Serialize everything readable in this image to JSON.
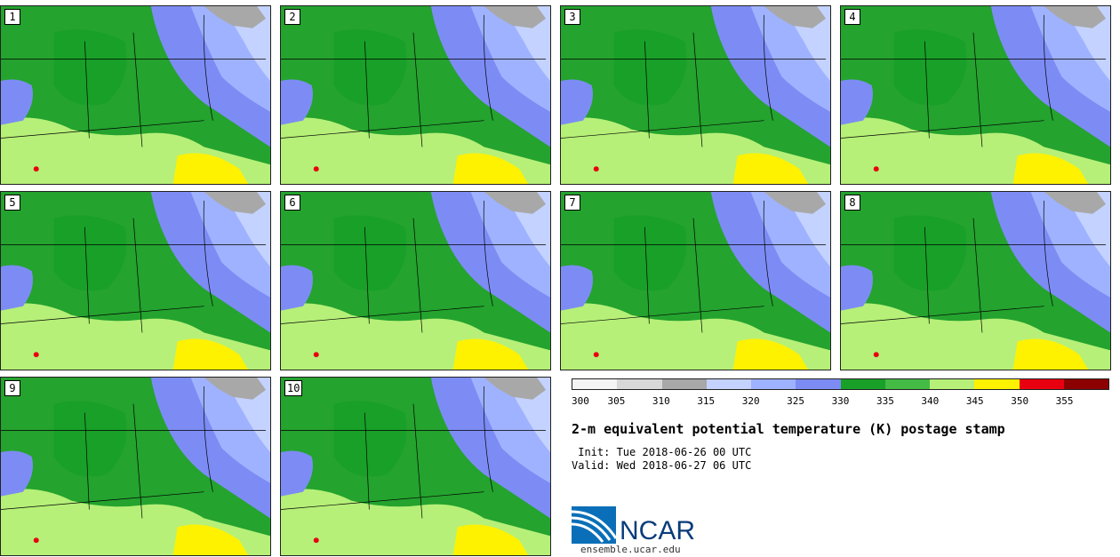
{
  "stamps": [
    {
      "label": "1"
    },
    {
      "label": "2"
    },
    {
      "label": "3"
    },
    {
      "label": "4"
    },
    {
      "label": "5"
    },
    {
      "label": "6"
    },
    {
      "label": "7"
    },
    {
      "label": "8"
    },
    {
      "label": "9"
    },
    {
      "label": "10"
    }
  ],
  "colorbar": {
    "colors": [
      "#f4f4f4",
      "#d8d8d8",
      "#a8a8a8",
      "#c4d2ff",
      "#9fb2ff",
      "#7d8cf4",
      "#18a028",
      "#44bb44",
      "#b6f078",
      "#fff200",
      "#e80010",
      "#8c0000"
    ],
    "ticks": [
      "300",
      "305",
      "310",
      "315",
      "320",
      "325",
      "330",
      "335",
      "340",
      "345",
      "350",
      "355"
    ]
  },
  "title": "2-m equivalent potential temperature (K) postage stamp",
  "init": " Init: Tue 2018-06-26 00 UTC",
  "valid": "Valid: Wed 2018-06-27 06 UTC",
  "logo_text": "NCAR",
  "site": "ensemble.ucar.edu"
}
